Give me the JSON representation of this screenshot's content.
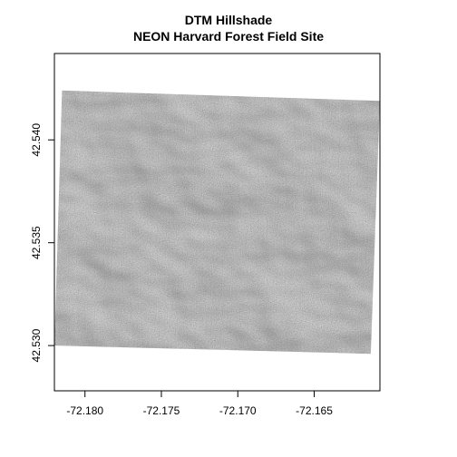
{
  "chart_data": {
    "type": "heatmap",
    "title": "DTM Hillshade",
    "subtitle": "NEON Harvard Forest Field Site",
    "xlabel": "",
    "ylabel": "",
    "xlim": [
      -72.182,
      -72.1607
    ],
    "ylim": [
      42.5278,
      42.5442
    ],
    "x_ticks": [
      -72.18,
      -72.175,
      -72.17,
      -72.165
    ],
    "x_tick_labels": [
      "-72.180",
      "-72.175",
      "-72.170",
      "-72.165"
    ],
    "y_ticks": [
      42.53,
      42.535,
      42.54
    ],
    "y_tick_labels": [
      "42.530",
      "42.535",
      "42.540"
    ],
    "raster_extent": {
      "corners": [
        {
          "x": -72.1815,
          "y": 42.5424
        },
        {
          "x": -72.1607,
          "y": 42.5419
        },
        {
          "x": -72.1613,
          "y": 42.5296
        },
        {
          "x": -72.182,
          "y": 42.53
        }
      ]
    },
    "color_scale": "grayscale hillshade",
    "grid": false,
    "legend": "none"
  }
}
